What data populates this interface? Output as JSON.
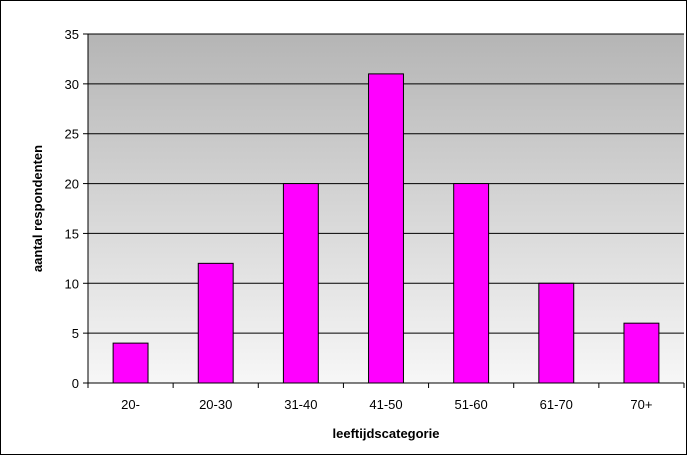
{
  "chart_data": {
    "type": "bar",
    "categories": [
      "20-",
      "20-30",
      "31-40",
      "41-50",
      "51-60",
      "61-70",
      "70+"
    ],
    "values": [
      4,
      12,
      20,
      31,
      20,
      10,
      6
    ],
    "xlabel": "leeftijdscategorie",
    "ylabel": "aantal respondenten",
    "ylim": [
      0,
      35
    ],
    "yticks": [
      0,
      5,
      10,
      15,
      20,
      25,
      30,
      35
    ],
    "grid": true,
    "legend": "none",
    "colors": {
      "bar_fill": "#ff00ff",
      "bar_stroke": "#000000",
      "plot_bg_top": "#b5b5b5",
      "plot_bg_bottom": "#f7f7f7",
      "gridline": "#000000"
    }
  }
}
